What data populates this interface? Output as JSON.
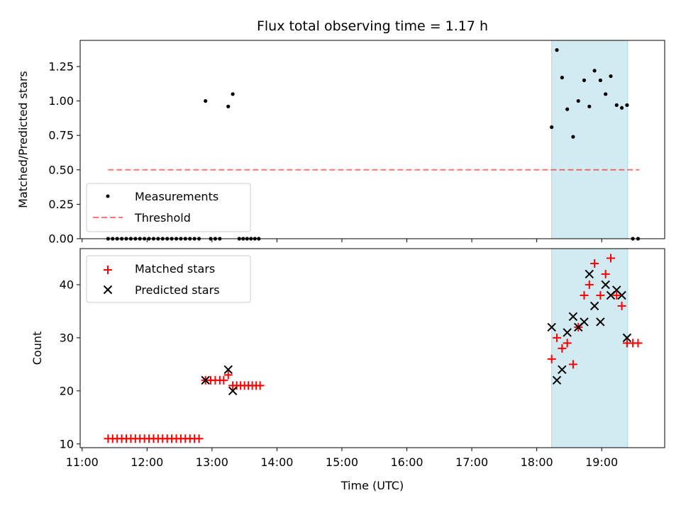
{
  "title": "Flux total observing time = 1.17 h",
  "colors": {
    "shade": "#add8e6",
    "threshold": "#ff0000",
    "measure": "#000000",
    "matched": "#ff0000",
    "predicted": "#000000"
  },
  "chart_data": [
    {
      "type": "scatter",
      "ylabel": "Matched/Predicted stars",
      "xlim": [
        10.97,
        19.97
      ],
      "ylim": [
        0,
        1.44
      ],
      "yticks": [
        "0.00",
        "0.25",
        "0.50",
        "0.75",
        "1.00",
        "1.25"
      ],
      "ytick_values": [
        0,
        0.25,
        0.5,
        0.75,
        1.0,
        1.25
      ],
      "shaded_span": [
        18.23,
        19.4
      ],
      "legend": {
        "placement": "lower-left",
        "entries": [
          "Measurements",
          "Threshold"
        ]
      },
      "threshold": {
        "name": "Threshold",
        "value": 0.5,
        "x": [
          11.4,
          19.58
        ]
      },
      "series": [
        {
          "name": "Measurements",
          "x": [
            11.4,
            11.47,
            11.54,
            11.61,
            11.68,
            11.75,
            11.82,
            11.89,
            11.96,
            12.03,
            12.1,
            12.17,
            12.24,
            12.31,
            12.38,
            12.45,
            12.52,
            12.59,
            12.66,
            12.73,
            12.8,
            12.9,
            12.98,
            13.05,
            13.12,
            13.25,
            13.32,
            13.42,
            13.48,
            13.54,
            13.6,
            13.66,
            13.72,
            18.23,
            18.31,
            18.39,
            18.47,
            18.56,
            18.64,
            18.73,
            18.81,
            18.89,
            18.98,
            19.06,
            19.14,
            19.23,
            19.31,
            19.39,
            19.48,
            19.56
          ],
          "y": [
            0,
            0,
            0,
            0,
            0,
            0,
            0,
            0,
            0,
            0,
            0,
            0,
            0,
            0,
            0,
            0,
            0,
            0,
            0,
            0,
            0,
            1.0,
            0,
            0,
            0,
            0.96,
            1.05,
            0,
            0,
            0,
            0,
            0,
            0,
            0.81,
            1.37,
            1.17,
            0.94,
            0.74,
            1.0,
            1.15,
            0.96,
            1.22,
            1.15,
            1.05,
            1.18,
            0.97,
            0.95,
            0.97,
            0,
            0
          ]
        }
      ]
    },
    {
      "type": "scatter",
      "xlabel": "Time (UTC)",
      "ylabel": "Count",
      "xlim": [
        10.97,
        19.97
      ],
      "ylim": [
        9.3,
        46.8
      ],
      "xticks": [
        "11:00",
        "12:00",
        "13:00",
        "14:00",
        "15:00",
        "16:00",
        "17:00",
        "18:00",
        "19:00"
      ],
      "xtick_values": [
        11,
        12,
        13,
        14,
        15,
        16,
        17,
        18,
        19
      ],
      "yticks": [
        "10",
        "20",
        "30",
        "40"
      ],
      "ytick_values": [
        10,
        20,
        30,
        40
      ],
      "shaded_span": [
        18.23,
        19.4
      ],
      "legend": {
        "placement": "upper-left",
        "entries": [
          "Matched stars",
          "Predicted stars"
        ]
      },
      "series": [
        {
          "name": "Matched stars",
          "marker": "+",
          "x": [
            11.4,
            11.47,
            11.54,
            11.61,
            11.68,
            11.75,
            11.82,
            11.89,
            11.96,
            12.03,
            12.1,
            12.17,
            12.24,
            12.31,
            12.38,
            12.45,
            12.52,
            12.59,
            12.66,
            12.73,
            12.8,
            12.9,
            12.98,
            13.05,
            13.12,
            13.18,
            13.25,
            13.32,
            13.38,
            13.44,
            13.5,
            13.56,
            13.62,
            13.68,
            13.74,
            18.23,
            18.31,
            18.39,
            18.47,
            18.56,
            18.64,
            18.73,
            18.81,
            18.89,
            18.98,
            19.06,
            19.14,
            19.23,
            19.31,
            19.39,
            19.48,
            19.56
          ],
          "y": [
            11,
            11,
            11,
            11,
            11,
            11,
            11,
            11,
            11,
            11,
            11,
            11,
            11,
            11,
            11,
            11,
            11,
            11,
            11,
            11,
            11,
            22,
            22,
            22,
            22,
            22,
            23,
            21,
            21,
            21,
            21,
            21,
            21,
            21,
            21,
            26,
            30,
            28,
            29,
            25,
            32,
            38,
            40,
            44,
            38,
            42,
            45,
            38,
            36,
            29,
            29,
            29
          ]
        },
        {
          "name": "Predicted stars",
          "marker": "x",
          "x": [
            12.9,
            13.25,
            13.32,
            18.23,
            18.31,
            18.39,
            18.47,
            18.56,
            18.64,
            18.73,
            18.81,
            18.89,
            18.98,
            19.06,
            19.14,
            19.23,
            19.31,
            19.39
          ],
          "y": [
            22,
            24,
            20,
            32,
            22,
            24,
            31,
            34,
            32,
            33,
            42,
            36,
            33,
            40,
            38,
            39,
            38,
            30
          ]
        }
      ]
    }
  ]
}
